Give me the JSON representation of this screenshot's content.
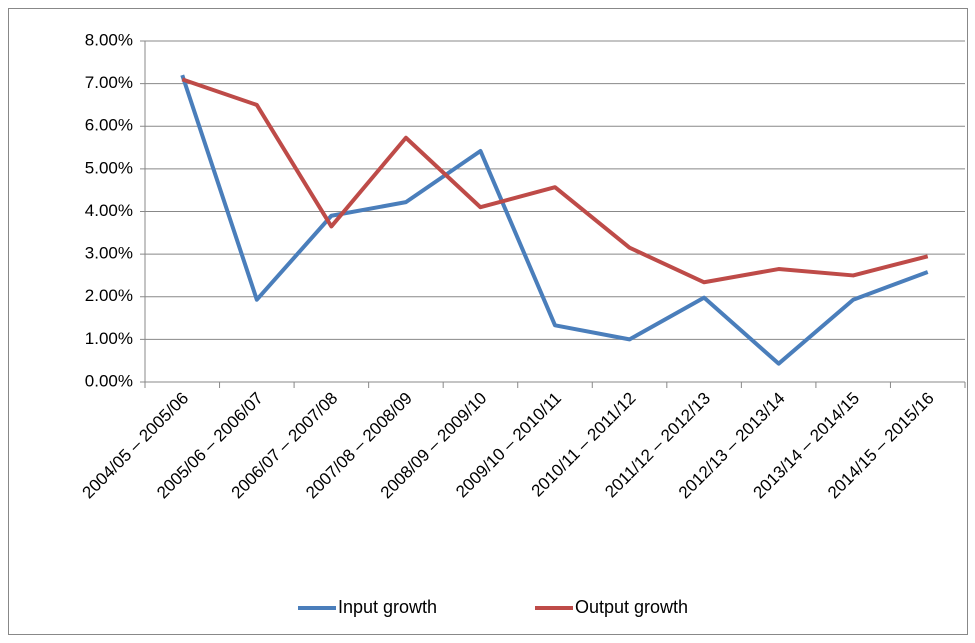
{
  "chart_data": {
    "type": "line",
    "categories": [
      "2004/05 – 2005/06",
      "2005/06 – 2006/07",
      "2006/07 – 2007/08",
      "2007/08 – 2008/09",
      "2008/09 – 2009/10",
      "2009/10 – 2010/11",
      "2010/11 – 2011/12",
      "2011/12 – 2012/13",
      "2012/13 – 2013/14",
      "2013/14 – 2014/15",
      "2014/15 – 2015/16"
    ],
    "series": [
      {
        "name": "Input growth",
        "color": "#4a7ebb",
        "values": [
          7.2,
          1.93,
          3.9,
          4.22,
          5.42,
          1.33,
          1.0,
          1.98,
          0.43,
          1.93,
          2.58
        ]
      },
      {
        "name": "Output growth",
        "color": "#be4b48",
        "values": [
          7.1,
          6.5,
          3.65,
          5.73,
          4.1,
          4.57,
          3.15,
          2.34,
          2.65,
          2.5,
          2.95
        ]
      }
    ],
    "ylim": [
      0,
      8
    ],
    "yticks": [
      {
        "value": 0,
        "label": "0.00%"
      },
      {
        "value": 1,
        "label": "1.00%"
      },
      {
        "value": 2,
        "label": "2.00%"
      },
      {
        "value": 3,
        "label": "3.00%"
      },
      {
        "value": 4,
        "label": "4.00%"
      },
      {
        "value": 5,
        "label": "5.00%"
      },
      {
        "value": 6,
        "label": "6.00%"
      },
      {
        "value": 7,
        "label": "7.00%"
      },
      {
        "value": 8,
        "label": "8.00%"
      }
    ],
    "grid": true,
    "legend": "bottom"
  }
}
